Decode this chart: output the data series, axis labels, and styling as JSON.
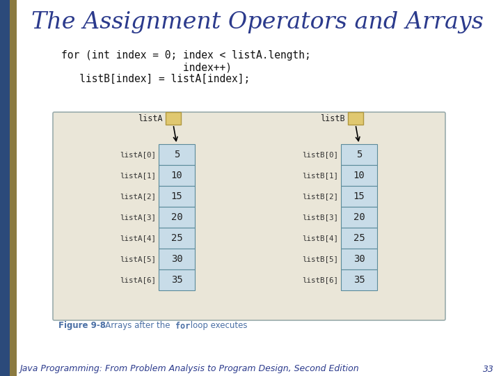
{
  "title": "The Assignment Operators and Arrays",
  "title_color": "#2B3A8C",
  "title_fontsize": 24,
  "bg_color": "#FFFFFF",
  "left_bar1_color": "#2B4A7A",
  "left_bar2_color": "#8B7A40",
  "code_lines": [
    "for (int index = 0; index < listA.length;",
    "                    index++)",
    "   listB[index] = listA[index];"
  ],
  "code_color": "#111111",
  "code_fontsize": 10.5,
  "diagram_bg": "#EAE6D8",
  "diagram_border": "#9AACAC",
  "cell_fill": "#C8DCE8",
  "cell_border": "#5A8A9A",
  "values": [
    5,
    10,
    15,
    20,
    25,
    30,
    35
  ],
  "labelsA": [
    "listA[0]",
    "listA[1]",
    "listA[2]",
    "listA[3]",
    "listA[4]",
    "listA[5]",
    "listA[6]"
  ],
  "labelsB": [
    "listB[0]",
    "listB[1]",
    "listB[2]",
    "listB[3]",
    "listB[4]",
    "listB[5]",
    "listB[6]"
  ],
  "pointer_label_A": "listA",
  "pointer_label_B": "listB",
  "pointer_box_color": "#E0C870",
  "pointer_box_edge": "#B09840",
  "figure_caption_bold": "Figure 9-8",
  "figure_caption_rest": "   Arrays after the ",
  "figure_caption_for": "for",
  "figure_caption_end": " loop executes",
  "figure_caption_color": "#4A6FA5",
  "footer_text": "Java Programming: From Problem Analysis to Program Design, Second Edition",
  "footer_page": "33",
  "footer_color": "#2B3A8C",
  "footer_fontsize": 9
}
